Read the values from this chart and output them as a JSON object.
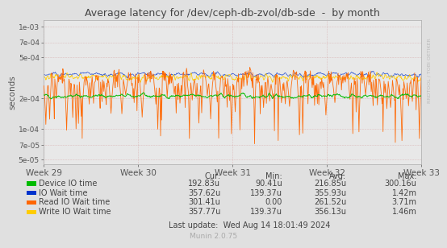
{
  "title": "Average latency for /dev/ceph-db-zvol/db-sde  -  by month",
  "ylabel": "seconds",
  "background_color": "#e0e0e0",
  "plot_bg_color": "#e8e8e8",
  "week_labels": [
    "Week 29",
    "Week 30",
    "Week 31",
    "Week 32",
    "Week 33"
  ],
  "ylim_min": 4.5e-05,
  "ylim_max": 0.00115,
  "legend_entries": [
    {
      "label": "Device IO time",
      "color": "#00bb00"
    },
    {
      "label": "IO Wait time",
      "color": "#0033cc"
    },
    {
      "label": "Read IO Wait time",
      "color": "#ff6600"
    },
    {
      "label": "Write IO Wait time",
      "color": "#ffcc00"
    }
  ],
  "table_headers": [
    "Cur:",
    "Min:",
    "Avg:",
    "Max:"
  ],
  "table_rows": [
    [
      "192.83u",
      "90.41u",
      "216.85u",
      "300.16u"
    ],
    [
      "357.62u",
      "139.37u",
      "355.93u",
      "1.42m"
    ],
    [
      "301.41u",
      "0.00",
      "261.52u",
      "3.71m"
    ],
    [
      "357.77u",
      "139.37u",
      "356.13u",
      "1.46m"
    ]
  ],
  "last_update": "Last update:  Wed Aug 14 18:01:49 2024",
  "munin_version": "Munin 2.0.75",
  "right_label": "RRDTOOL / TOBI OETIKER",
  "seed": 42,
  "n_points": 800
}
